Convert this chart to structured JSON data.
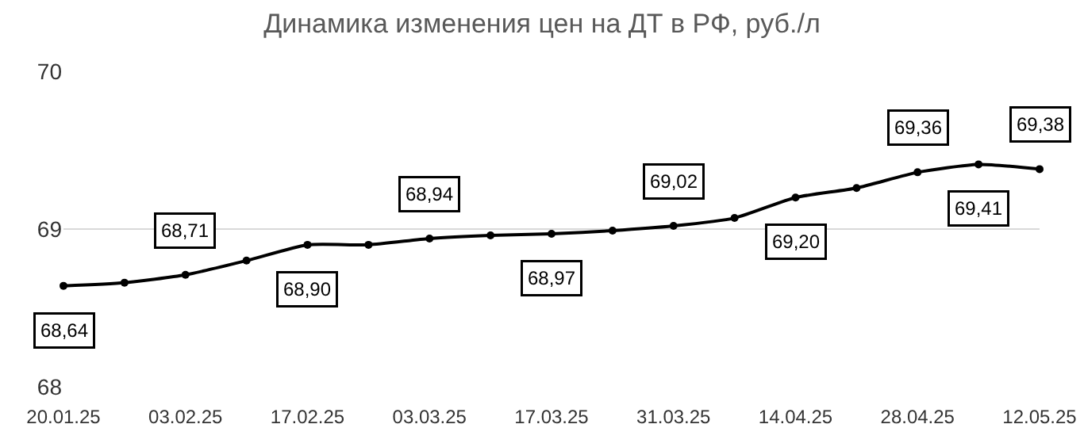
{
  "chart_data": {
    "type": "line",
    "title": "Динамика изменения цен на ДТ в РФ, руб./л",
    "categories": [
      "20.01.25",
      null,
      "03.02.25",
      null,
      "17.02.25",
      null,
      "03.03.25",
      null,
      "17.03.25",
      null,
      "31.03.25",
      null,
      "14.04.25",
      null,
      "28.04.25",
      null,
      "12.05.25"
    ],
    "series": [
      {
        "color": "#000000",
        "values": [
          68.64,
          68.66,
          68.71,
          68.8,
          68.9,
          68.9,
          68.94,
          68.96,
          68.97,
          68.99,
          69.02,
          69.07,
          69.2,
          69.26,
          69.36,
          69.41,
          69.38
        ],
        "value_labels": [
          "68,64",
          null,
          "68,71",
          null,
          "68,90",
          null,
          "68,94",
          null,
          "68,97",
          null,
          "69,02",
          null,
          "69,20",
          null,
          "69,36",
          "69,41",
          "69,38"
        ]
      }
    ],
    "ylim": [
      68,
      70
    ],
    "yticks": [
      68,
      69,
      70
    ],
    "grid": "y",
    "marker": "circle",
    "line_style": "solid"
  }
}
